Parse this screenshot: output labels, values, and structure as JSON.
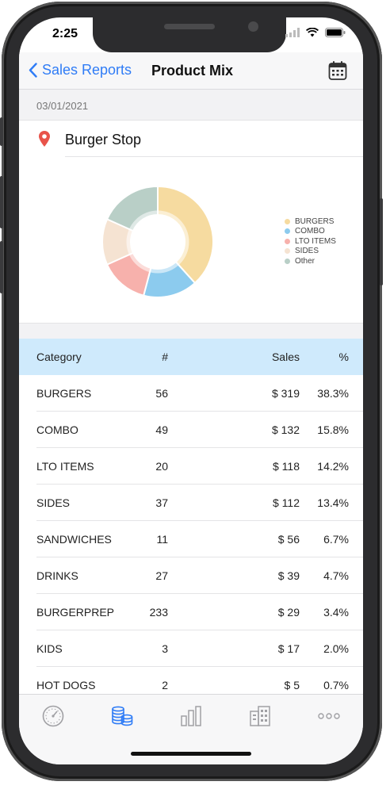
{
  "status": {
    "time": "2:25"
  },
  "nav": {
    "back_label": "Sales Reports",
    "title": "Product Mix"
  },
  "date": "03/01/2021",
  "location": {
    "name": "Burger Stop"
  },
  "chart_data": {
    "type": "pie",
    "categories": [
      "BURGERS",
      "COMBO",
      "LTO ITEMS",
      "SIDES",
      "Other"
    ],
    "values": [
      38.3,
      15.8,
      14.2,
      13.4,
      18.3
    ],
    "colors": [
      "#f6dba0",
      "#8ccbee",
      "#f7b1ac",
      "#f5e3d2",
      "#b9cfc7"
    ],
    "legend_position": "right"
  },
  "table": {
    "headers": {
      "category": "Category",
      "count": "#",
      "sales": "Sales",
      "pct": "%"
    },
    "rows": [
      {
        "category": "BURGERS",
        "count": "56",
        "sales": "$ 319",
        "pct": "38.3%"
      },
      {
        "category": "COMBO",
        "count": "49",
        "sales": "$ 132",
        "pct": "15.8%"
      },
      {
        "category": "LTO ITEMS",
        "count": "20",
        "sales": "$ 118",
        "pct": "14.2%"
      },
      {
        "category": "SIDES",
        "count": "37",
        "sales": "$ 112",
        "pct": "13.4%"
      },
      {
        "category": "SANDWICHES",
        "count": "11",
        "sales": "$ 56",
        "pct": "6.7%"
      },
      {
        "category": "DRINKS",
        "count": "27",
        "sales": "$ 39",
        "pct": "4.7%"
      },
      {
        "category": "BURGERPREP",
        "count": "233",
        "sales": "$ 29",
        "pct": "3.4%"
      },
      {
        "category": "KIDS",
        "count": "3",
        "sales": "$ 17",
        "pct": "2.0%"
      },
      {
        "category": "HOT DOGS",
        "count": "2",
        "sales": "$ 5",
        "pct": "0.7%"
      }
    ]
  },
  "tabs": [
    {
      "icon": "dashboard-gauge-icon",
      "active": false
    },
    {
      "icon": "coins-stack-icon",
      "active": true
    },
    {
      "icon": "bar-chart-icon",
      "active": false
    },
    {
      "icon": "building-icon",
      "active": false
    },
    {
      "icon": "more-dots-icon",
      "active": false
    }
  ],
  "colors": {
    "accent": "#2f7cf6",
    "header_bg": "#cfeafc",
    "inactive_icon": "#a0a0a4"
  }
}
